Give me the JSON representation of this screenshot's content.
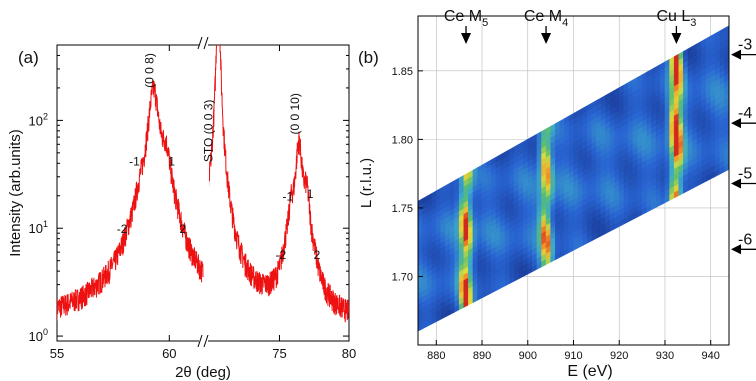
{
  "chart_data": [
    {
      "panel_label": "(a)",
      "type": "line",
      "xlabel": "2θ (deg)",
      "ylabel": "Intensity (arb.units)",
      "y_scale": "log",
      "ylim": [
        0.9,
        500
      ],
      "x_segments": [
        [
          55,
          61.5
        ],
        [
          69.5,
          80
        ]
      ],
      "x_ticks": [
        55,
        60,
        75,
        80
      ],
      "y_ticks": [
        {
          "value": 1,
          "base": "10",
          "exp": "0"
        },
        {
          "value": 10,
          "base": "10",
          "exp": "1"
        },
        {
          "value": 100,
          "base": "10",
          "exp": "2"
        }
      ],
      "series_color": "#ee1111",
      "peaks": [
        {
          "x": 58.2,
          "h": 1.0
        },
        {
          "x": 58.7,
          "h": 6.5
        },
        {
          "x": 59.3,
          "h": 190
        },
        {
          "x": 59.85,
          "h": 36
        },
        {
          "x": 60.35,
          "h": 1.6
        },
        {
          "x": 75.4,
          "h": 1.3
        },
        {
          "x": 75.85,
          "h": 10
        },
        {
          "x": 76.4,
          "h": 60
        },
        {
          "x": 76.95,
          "h": 16
        },
        {
          "x": 77.5,
          "h": 1.0
        },
        {
          "x": 70.6,
          "h": 2500
        }
      ],
      "annotations": [
        {
          "text": "(0 0 8)",
          "x": 59.3,
          "y": 290,
          "rot": -90
        },
        {
          "text": "-1",
          "x": 58.45,
          "y": 38
        },
        {
          "text": "1",
          "x": 60.1,
          "y": 38
        },
        {
          "text": "-2",
          "x": 57.9,
          "y": 9
        },
        {
          "text": "2",
          "x": 60.6,
          "y": 9
        },
        {
          "text": "STO (0 0 3)",
          "x": 70.2,
          "y": 80,
          "rot": -90
        },
        {
          "text": "(0 0 10)",
          "x": 76.4,
          "y": 115,
          "rot": -90
        },
        {
          "text": "-1",
          "x": 75.6,
          "y": 18
        },
        {
          "text": "1",
          "x": 77.2,
          "y": 19
        },
        {
          "text": "-2",
          "x": 75.1,
          "y": 5.2
        },
        {
          "text": "2",
          "x": 77.7,
          "y": 5.2
        }
      ]
    },
    {
      "panel_label": "(b)",
      "type": "heatmap",
      "xlabel": "E (eV)",
      "ylabel": "L (r.l.u.)",
      "xlim": [
        876,
        944
      ],
      "ylim": [
        1.65,
        1.89
      ],
      "x_ticks": [
        880,
        890,
        900,
        910,
        920,
        930,
        940
      ],
      "y_ticks": [
        1.7,
        1.75,
        1.8,
        1.85
      ],
      "top_markers": [
        {
          "name": "Ce M",
          "sub": "5",
          "x": 886.5
        },
        {
          "name": "Ce M",
          "sub": "4",
          "x": 904
        },
        {
          "name": "Cu L",
          "sub": "3",
          "x": 932.5
        }
      ],
      "right_markers": [
        {
          "label": "-3",
          "y": 1.864
        },
        {
          "label": "-4",
          "y": 1.814
        },
        {
          "label": "-5",
          "y": 1.77
        },
        {
          "label": "-6",
          "y": 1.722
        }
      ],
      "band": {
        "x_start": 876,
        "x_end": 944,
        "y_low_start": 1.66,
        "y_low_end": 1.778,
        "y_high_start": 1.755,
        "y_high_end": 1.883
      },
      "intensity_ridges": [
        {
          "x": 886.5,
          "strength": 0.85
        },
        {
          "x": 904,
          "strength": 0.75
        },
        {
          "x": 932.5,
          "strength": 0.95
        }
      ]
    }
  ]
}
